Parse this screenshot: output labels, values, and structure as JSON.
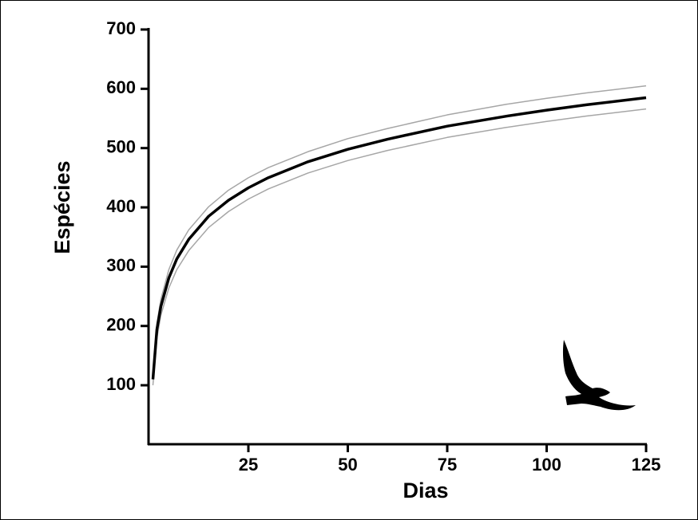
{
  "chart_data": {
    "type": "line",
    "x_label": "Dias",
    "y_label": "Espécies",
    "x": [
      1,
      2,
      3,
      5,
      7,
      10,
      15,
      20,
      25,
      30,
      40,
      50,
      60,
      75,
      90,
      100,
      110,
      125
    ],
    "series": [
      {
        "color": "#000000",
        "values": [
          110,
          194,
          233,
          281,
          313,
          346,
          385,
          412,
          433,
          450,
          477,
          498,
          515,
          537,
          554,
          564,
          573,
          585
        ]
      },
      {
        "color": "#a6a6a6",
        "values": [
          113,
          204,
          245,
          295,
          328,
          362,
          401,
          429,
          450,
          467,
          494,
          516,
          533,
          556,
          574,
          584,
          593,
          605
        ]
      },
      {
        "color": "#a6a6a6",
        "values": [
          100,
          180,
          218,
          264,
          295,
          327,
          366,
          393,
          414,
          431,
          458,
          479,
          496,
          518,
          535,
          545,
          554,
          566
        ]
      }
    ],
    "xlim": [
      0,
      125
    ],
    "xticks": [
      25,
      50,
      75,
      100,
      125
    ],
    "ylim": [
      0,
      700
    ],
    "yticks": [
      100,
      200,
      300,
      400,
      500,
      600,
      700
    ]
  }
}
